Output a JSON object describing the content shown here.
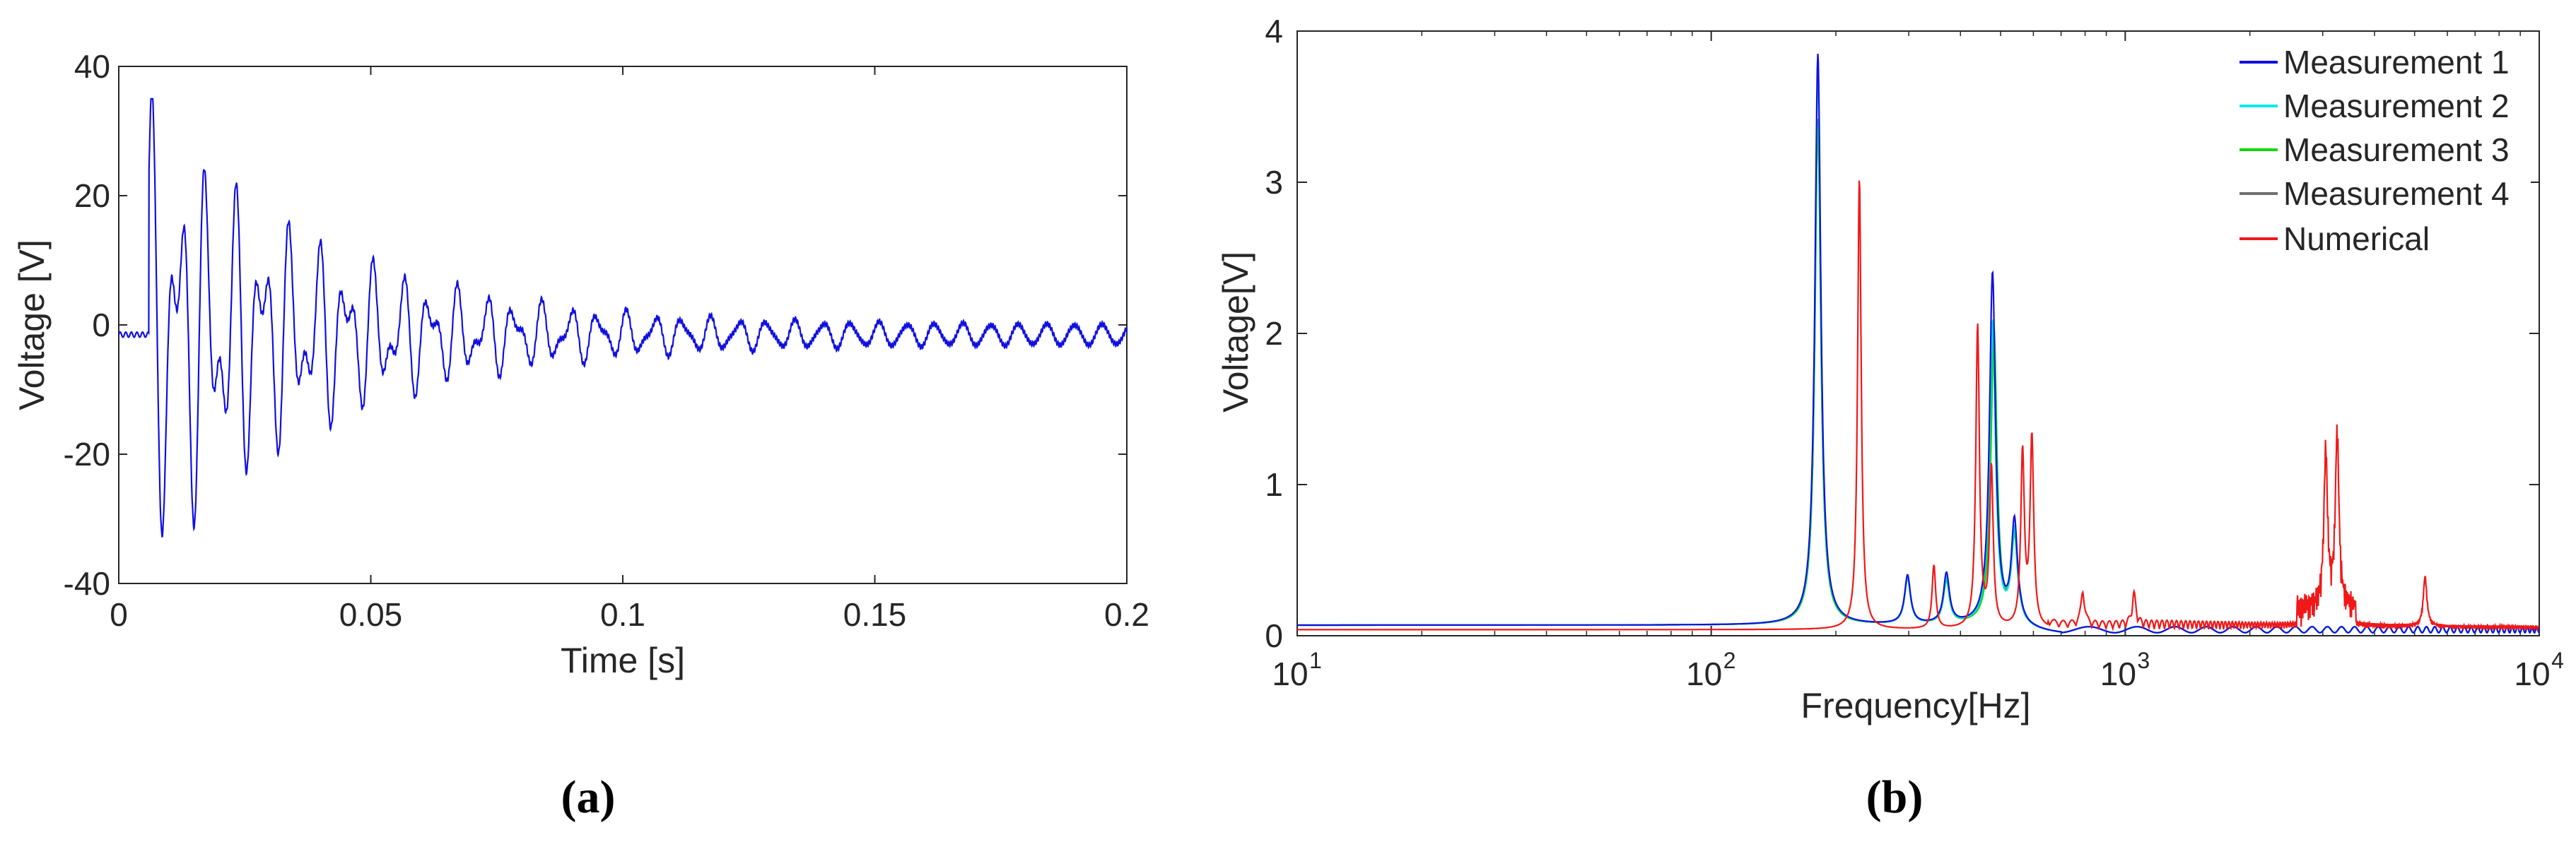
{
  "colors": {
    "measurement1": "#1010e0",
    "measurement2": "#00e8f0",
    "measurement3": "#10d810",
    "measurement4": "#707070",
    "numerical": "#f01818",
    "timeSignal": "#1010e0",
    "axis": "#262626"
  },
  "panels": {
    "a_label": "(a)",
    "b_label": "(b)"
  },
  "chart_data": [
    {
      "type": "line",
      "panel": "(a)",
      "title": "",
      "xlabel": "Time [s]",
      "ylabel": "Voltage [V]",
      "xlim": [
        0,
        0.2
      ],
      "ylim": [
        -40,
        40
      ],
      "xticks": [
        0,
        0.05,
        0.1,
        0.15,
        0.2
      ],
      "xtick_labels": [
        "0",
        "0.05",
        "0.1",
        "0.15",
        "0.2"
      ],
      "yticks": [
        -40,
        -20,
        0,
        20,
        40
      ],
      "ytick_labels": [
        "-40",
        "-20",
        "0",
        "20",
        "40"
      ],
      "grid": false,
      "signal": {
        "description_values": "decaying oscillation",
        "start_s": 0.006,
        "initial_amplitude_V": 35,
        "decay_rate_per_s": 27,
        "component_freqs_Hz": [
          181,
          298
        ],
        "residual_amplitude_V": 1.5,
        "residual_freq_Hz": 181,
        "offset_V": -1.5,
        "min_V": -37,
        "max_V": 35
      },
      "series": [
        {
          "color": "#1010e0"
        }
      ]
    },
    {
      "type": "line",
      "panel": "(b)",
      "title": "",
      "xlabel": "Frequency[Hz]",
      "ylabel": "Voltage[V]",
      "xscale": "log",
      "xlim": [
        10,
        10000
      ],
      "ylim": [
        0,
        4
      ],
      "xticks": [
        10,
        100,
        1000,
        10000
      ],
      "xtick_labels": [
        "10",
        "10",
        "10",
        "10"
      ],
      "xtick_exponents": [
        "1",
        "2",
        "3",
        "4"
      ],
      "yticks": [
        0,
        1,
        2,
        3,
        4
      ],
      "ytick_labels": [
        "0",
        "1",
        "2",
        "3",
        "4"
      ],
      "grid": false,
      "legend": "top-right",
      "series": [
        {
          "name": "Measurement 1",
          "color": "#1010e0",
          "peaks": [
            [
              181,
              3.78
            ],
            [
              298,
              0.32
            ],
            [
              370,
              0.33
            ],
            [
              478,
              2.32
            ],
            [
              540,
              0.66
            ]
          ],
          "baseline": 0.07
        },
        {
          "name": "Measurement 2",
          "color": "#00e8f0",
          "peaks": [
            [
              181,
              3.65
            ],
            [
              298,
              0.3
            ],
            [
              370,
              0.3
            ],
            [
              478,
              2.0
            ],
            [
              540,
              0.6
            ]
          ],
          "baseline": 0.07
        },
        {
          "name": "Measurement 3",
          "color": "#10d810",
          "peaks": [
            [
              181,
              3.3
            ],
            [
              298,
              0.3
            ],
            [
              370,
              0.28
            ],
            [
              482,
              1.95
            ],
            [
              540,
              0.55
            ]
          ],
          "baseline": 0.07
        },
        {
          "name": "Measurement 4",
          "color": "#707070",
          "peaks": [
            [
              181,
              3.35
            ],
            [
              298,
              0.3
            ],
            [
              370,
              0.3
            ],
            [
              480,
              2.0
            ],
            [
              540,
              0.58
            ]
          ],
          "baseline": 0.07
        },
        {
          "name": "Numerical",
          "color": "#f01818",
          "peaks": [
            [
              228,
              2.99
            ],
            [
              345,
              0.42
            ],
            [
              440,
              2.0
            ],
            [
              475,
              1.05
            ],
            [
              565,
              1.15
            ],
            [
              595,
              1.25
            ],
            [
              790,
              0.22
            ],
            [
              1050,
              0.2
            ],
            [
              3050,
              1.03
            ],
            [
              3250,
              1.15
            ],
            [
              5300,
              0.33
            ]
          ],
          "baseline": 0.04
        }
      ]
    }
  ]
}
